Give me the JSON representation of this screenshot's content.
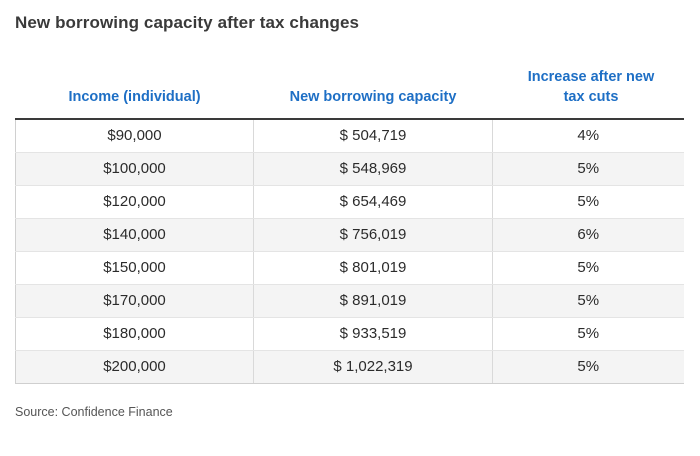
{
  "title": "New borrowing capacity after tax changes",
  "source": "Source: Confidence Finance",
  "chart_data": {
    "type": "table",
    "columns": [
      "Income (individual)",
      "New borrowing capacity",
      "Increase after new tax cuts"
    ],
    "rows": [
      [
        "$90,000",
        "$ 504,719",
        "4%"
      ],
      [
        "$100,000",
        "$ 548,969",
        "5%"
      ],
      [
        "$120,000",
        "$ 654,469",
        "5%"
      ],
      [
        "$140,000",
        "$ 756,019",
        "6%"
      ],
      [
        "$150,000",
        "$ 801,019",
        "5%"
      ],
      [
        "$170,000",
        "$ 891,019",
        "5%"
      ],
      [
        "$180,000",
        "$ 933,519",
        "5%"
      ],
      [
        "$200,000",
        "$ 1,022,319",
        "5%"
      ]
    ]
  },
  "colors": {
    "header_text": "#1e6fc5",
    "stripe": "#f4f4f4"
  }
}
